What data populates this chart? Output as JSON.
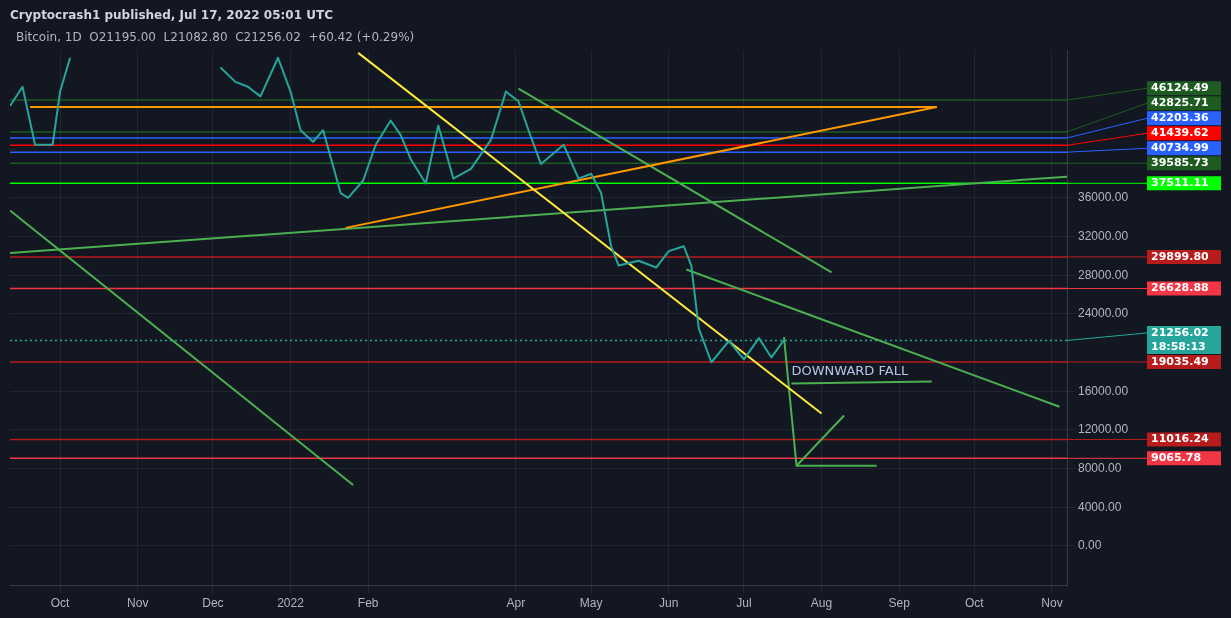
{
  "chart_data": {
    "type": "line",
    "title": "Cryptocrash1 published, Jul 17, 2022 05:01 UTC",
    "subtitle": "Bitcoin, 1D  O21195.00  L21082.80  C21256.02  +60.42 (+0.29%)",
    "xlim": [
      "2021-09-11",
      "2022-11-07"
    ],
    "xticks": [
      {
        "value": "2021-10-01",
        "label": "Oct"
      },
      {
        "value": "2021-11-01",
        "label": "Nov"
      },
      {
        "value": "2021-12-01",
        "label": "Dec"
      },
      {
        "value": "2022-01-01",
        "label": "2022"
      },
      {
        "value": "2022-02-01",
        "label": "Feb"
      },
      {
        "value": "2022-04-01",
        "label": "Apr"
      },
      {
        "value": "2022-05-01",
        "label": "May"
      },
      {
        "value": "2022-06-01",
        "label": "Jun"
      },
      {
        "value": "2022-07-01",
        "label": "Jul"
      },
      {
        "value": "2022-08-01",
        "label": "Aug"
      },
      {
        "value": "2022-09-01",
        "label": "Sep"
      },
      {
        "value": "2022-10-01",
        "label": "Oct"
      },
      {
        "value": "2022-11-01",
        "label": "Nov"
      }
    ],
    "ylim": [
      -4100,
      51300
    ],
    "yticks": [
      {
        "value": 0,
        "label": "0.00"
      },
      {
        "value": 4000,
        "label": "4000.00"
      },
      {
        "value": 8000,
        "label": "8000.00"
      },
      {
        "value": 12000,
        "label": "12000.00"
      },
      {
        "value": 16000,
        "label": "16000.00"
      },
      {
        "value": 24000,
        "label": "24000.00"
      },
      {
        "value": 28000,
        "label": "28000.00"
      },
      {
        "value": 32000,
        "label": "32000.00"
      },
      {
        "value": 36000,
        "label": "36000.00"
      }
    ],
    "grid": true,
    "series": [
      {
        "color": "#26a69a",
        "x": [
          "2021-09-11",
          "2021-09-16",
          "2021-09-21",
          "2021-09-28",
          "2021-10-01",
          "2021-10-05",
          "2021-11-01",
          "2021-12-04",
          "2021-12-10",
          "2021-12-15",
          "2021-12-20",
          "2021-12-27",
          "2022-01-01",
          "2022-01-05",
          "2022-01-10",
          "2022-01-14",
          "2022-01-21",
          "2022-01-24",
          "2022-01-30",
          "2022-02-04",
          "2022-02-10",
          "2022-02-14",
          "2022-02-18",
          "2022-02-24",
          "2022-03-01",
          "2022-03-07",
          "2022-03-14",
          "2022-03-22",
          "2022-03-28",
          "2022-04-02",
          "2022-04-06",
          "2022-04-11",
          "2022-04-20",
          "2022-04-26",
          "2022-05-01",
          "2022-05-05",
          "2022-05-09",
          "2022-05-12",
          "2022-05-20",
          "2022-05-27",
          "2022-06-01",
          "2022-06-07",
          "2022-06-10",
          "2022-06-13",
          "2022-06-18",
          "2022-06-25",
          "2022-07-01",
          "2022-07-07",
          "2022-07-12",
          "2022-07-17"
        ],
        "values": [
          45500,
          47500,
          41500,
          41500,
          47000,
          50500,
          null,
          49500,
          48000,
          47500,
          46500,
          50500,
          47000,
          43000,
          41800,
          43000,
          36500,
          36000,
          37800,
          41500,
          44000,
          42500,
          40000,
          37500,
          43500,
          38000,
          39000,
          42000,
          47000,
          46000,
          43000,
          39500,
          41500,
          38000,
          38500,
          36500,
          31000,
          29000,
          29500,
          28800,
          30500,
          31000,
          29000,
          22500,
          19000,
          21200,
          19300,
          21500,
          19500,
          21300
        ]
      },
      {
        "color": "#ffeb3b",
        "x": [
          "2022-01-28",
          "2022-08-01"
        ],
        "values": [
          51000,
          13700
        ]
      },
      {
        "color": "#ff9800",
        "x": [
          "2022-01-23",
          "2022-09-16"
        ],
        "values": [
          32900,
          45400
        ]
      },
      {
        "color": "#ff9800",
        "x": [
          "2021-09-19",
          "2022-09-16"
        ],
        "values": [
          45400,
          45400
        ]
      },
      {
        "color": "#4caf50",
        "x": [
          "2021-09-11",
          "2022-11-07"
        ],
        "values": [
          30300,
          38200
        ]
      },
      {
        "color": "#4caf50",
        "x": [
          "2021-09-11",
          "2022-01-26"
        ],
        "values": [
          34700,
          6300
        ]
      },
      {
        "color": "#4caf50",
        "x": [
          "2022-06-08",
          "2022-11-04"
        ],
        "values": [
          28600,
          14400
        ]
      },
      {
        "color": "#4caf50",
        "x": [
          "2022-04-02",
          "2022-08-05"
        ],
        "values": [
          47300,
          28300
        ]
      },
      {
        "color": "#4caf50",
        "x": [
          "2022-07-17",
          "2022-07-22",
          "2022-08-10"
        ],
        "values": [
          21600,
          8300,
          13500
        ]
      },
      {
        "color": "#4caf50",
        "x": [
          "2022-07-22",
          "2022-08-23"
        ],
        "values": [
          8300,
          8300
        ]
      },
      {
        "color": "#4caf50",
        "x": [
          "2022-07-20",
          "2022-09-14"
        ],
        "values": [
          16800,
          17000
        ]
      }
    ],
    "ref_lines": [
      {
        "axis": "y",
        "value": 46124.49,
        "label": "46124.49",
        "color": "#1e5b20"
      },
      {
        "axis": "y",
        "value": 42825.71,
        "label": "42825.71",
        "color": "#1e5b20"
      },
      {
        "axis": "y",
        "value": 42203.36,
        "label": "42203.36",
        "color": "#2962ff"
      },
      {
        "axis": "y",
        "value": 41439.62,
        "label": "41439.62",
        "color": "#ff0000"
      },
      {
        "axis": "y",
        "value": 40734.99,
        "label": "40734.99",
        "color": "#2962ff"
      },
      {
        "axis": "y",
        "value": 39585.73,
        "label": "39585.73",
        "color": "#1e5b20"
      },
      {
        "axis": "y",
        "value": 37511.11,
        "label": "37511.11",
        "color": "#00ff00"
      },
      {
        "axis": "y",
        "value": 29899.8,
        "label": "29899.80",
        "color": "#b71c1c"
      },
      {
        "axis": "y",
        "value": 26628.88,
        "label": "26628.88",
        "color": "#f23645"
      },
      {
        "axis": "y",
        "value": 21256.02,
        "label": "21256.02\n18:58:13",
        "color": "#26a69a",
        "line_style": "dotted"
      },
      {
        "axis": "y",
        "value": 19035.49,
        "label": "19035.49",
        "color": "#b71c1c"
      },
      {
        "axis": "y",
        "value": 11016.24,
        "label": "11016.24",
        "color": "#b71c1c"
      },
      {
        "axis": "y",
        "value": 9065.78,
        "label": "9065.78",
        "color": "#f23645"
      }
    ],
    "annotations": [
      {
        "text": "DOWNWARD FALL",
        "x": "2022-07-20",
        "y": 17400
      }
    ]
  }
}
